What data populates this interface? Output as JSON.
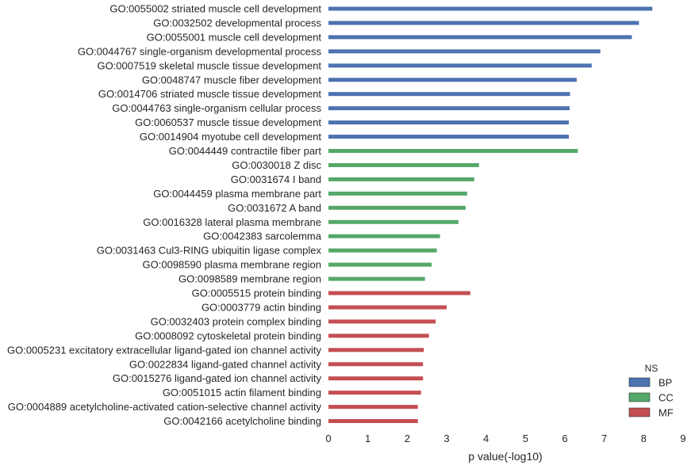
{
  "chart_data": {
    "type": "bar",
    "orientation": "horizontal",
    "xlabel": "p value(-log10)",
    "ylabel": "",
    "xlim": [
      0,
      9
    ],
    "xticks": [
      0,
      1,
      2,
      3,
      4,
      5,
      6,
      7,
      8,
      9
    ],
    "grid": false,
    "legend": {
      "title": "NS",
      "placement": "bottom-right",
      "entries": [
        {
          "name": "BP",
          "color": "#4C72B0"
        },
        {
          "name": "CC",
          "color": "#55A868"
        },
        {
          "name": "MF",
          "color": "#C44E52"
        }
      ]
    },
    "bars": [
      {
        "label": "GO:0055002 striated muscle cell development",
        "value": 8.22,
        "ns": "BP"
      },
      {
        "label": "GO:0032502 developmental process",
        "value": 7.88,
        "ns": "BP"
      },
      {
        "label": "GO:0055001 muscle cell development",
        "value": 7.7,
        "ns": "BP"
      },
      {
        "label": "GO:0044767 single-organism developmental process",
        "value": 6.9,
        "ns": "BP"
      },
      {
        "label": "GO:0007519 skeletal muscle tissue development",
        "value": 6.68,
        "ns": "BP"
      },
      {
        "label": "GO:0048747 muscle fiber development",
        "value": 6.3,
        "ns": "BP"
      },
      {
        "label": "GO:0014706 striated muscle tissue development",
        "value": 6.13,
        "ns": "BP"
      },
      {
        "label": "GO:0044763 single-organism cellular process",
        "value": 6.12,
        "ns": "BP"
      },
      {
        "label": "GO:0060537 muscle tissue development",
        "value": 6.1,
        "ns": "BP"
      },
      {
        "label": "GO:0014904 myotube cell development",
        "value": 6.1,
        "ns": "BP"
      },
      {
        "label": "GO:0044449 contractile fiber part",
        "value": 6.33,
        "ns": "CC"
      },
      {
        "label": "GO:0030018 Z disc",
        "value": 3.82,
        "ns": "CC"
      },
      {
        "label": "GO:0031674 I band",
        "value": 3.7,
        "ns": "CC"
      },
      {
        "label": "GO:0044459 plasma membrane part",
        "value": 3.52,
        "ns": "CC"
      },
      {
        "label": "GO:0031672 A band",
        "value": 3.48,
        "ns": "CC"
      },
      {
        "label": "GO:0016328 lateral plasma membrane",
        "value": 3.3,
        "ns": "CC"
      },
      {
        "label": "GO:0042383 sarcolemma",
        "value": 2.83,
        "ns": "CC"
      },
      {
        "label": "GO:0031463 Cul3-RING ubiquitin ligase complex",
        "value": 2.75,
        "ns": "CC"
      },
      {
        "label": "GO:0098590 plasma membrane region",
        "value": 2.62,
        "ns": "CC"
      },
      {
        "label": "GO:0098589 membrane region",
        "value": 2.45,
        "ns": "CC"
      },
      {
        "label": "GO:0005515 protein binding",
        "value": 3.6,
        "ns": "MF"
      },
      {
        "label": "GO:0003779 actin binding",
        "value": 3.0,
        "ns": "MF"
      },
      {
        "label": "GO:0032403 protein complex binding",
        "value": 2.72,
        "ns": "MF"
      },
      {
        "label": "GO:0008092 cytoskeletal protein binding",
        "value": 2.55,
        "ns": "MF"
      },
      {
        "label": "GO:0005231 excitatory extracellular ligand-gated ion channel activity",
        "value": 2.42,
        "ns": "MF"
      },
      {
        "label": "GO:0022834 ligand-gated channel activity",
        "value": 2.4,
        "ns": "MF"
      },
      {
        "label": "GO:0015276 ligand-gated ion channel activity",
        "value": 2.4,
        "ns": "MF"
      },
      {
        "label": "GO:0051015 actin filament binding",
        "value": 2.35,
        "ns": "MF"
      },
      {
        "label": "GO:0004889 acetylcholine-activated cation-selective channel activity",
        "value": 2.27,
        "ns": "MF"
      },
      {
        "label": "GO:0042166 acetylcholine binding",
        "value": 2.27,
        "ns": "MF"
      }
    ]
  }
}
